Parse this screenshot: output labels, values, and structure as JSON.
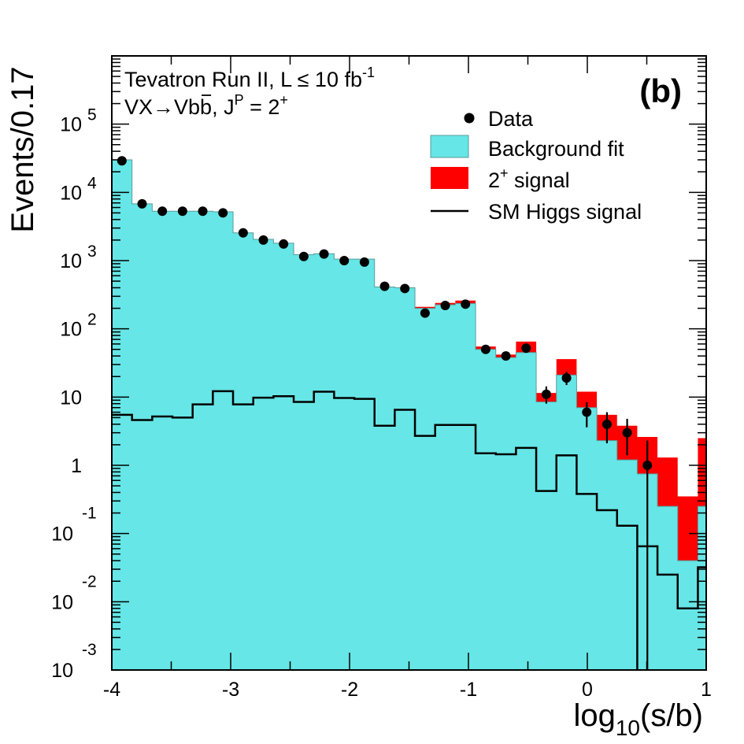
{
  "chart_data": {
    "type": "histogram",
    "xlabel": {
      "main": "log",
      "sub": "10",
      "rest": "(s/b)"
    },
    "ylabel": "Events/0.17",
    "xlim": [
      -4,
      1
    ],
    "ylim": [
      0.001,
      1000000
    ],
    "yscale": "log",
    "grid": false,
    "x_ticks": [
      "-4",
      "-3",
      "-2",
      "-1",
      "0",
      "1"
    ],
    "y_ticks": [
      {
        "value": 0.001,
        "base": "10",
        "exp": "-3"
      },
      {
        "value": 0.01,
        "base": "10",
        "exp": "-2"
      },
      {
        "value": 0.1,
        "base": "10",
        "exp": "-1"
      },
      {
        "value": 1,
        "base": "1",
        "exp": ""
      },
      {
        "value": 10,
        "base": "10",
        "exp": ""
      },
      {
        "value": 100,
        "base": "10",
        "exp": "2"
      },
      {
        "value": 1000,
        "base": "10",
        "exp": "3"
      },
      {
        "value": 10000,
        "base": "10",
        "exp": "4"
      },
      {
        "value": 100000,
        "base": "10",
        "exp": "5"
      }
    ],
    "annotations": {
      "line1_main": "Tevatron Run II, L ≤ 10 fb",
      "line1_sup": "-1",
      "line2_pre": "VX→Vb",
      "line2_bbar": "b",
      "line2_mid": ", J",
      "line2_sup": "P",
      "line2_post": " = 2",
      "line2_sup2": "+",
      "panel": "(b)"
    },
    "legend": {
      "position": "top-right",
      "entries": [
        {
          "type": "marker",
          "label": "Data"
        },
        {
          "type": "fill",
          "color": "#66e6e6",
          "label": "Background fit"
        },
        {
          "type": "fill",
          "color": "#ff0000",
          "label_pre": "2",
          "label_sup": "+",
          "label_post": " signal"
        },
        {
          "type": "line",
          "color": "#000000",
          "label": "SM Higgs signal"
        }
      ]
    },
    "bin_edges": [
      -4.0,
      -3.83,
      -3.66,
      -3.49,
      -3.32,
      -3.15,
      -2.98,
      -2.81,
      -2.64,
      -2.47,
      -2.3,
      -2.13,
      -1.96,
      -1.79,
      -1.62,
      -1.45,
      -1.28,
      -1.11,
      -0.94,
      -0.77,
      -0.6,
      -0.43,
      -0.26,
      -0.09,
      0.08,
      0.25,
      0.42,
      0.59,
      0.76,
      0.93,
      1.0
    ],
    "series": [
      {
        "name": "Background fit",
        "color": "#66e6e6",
        "values": [
          30000,
          6800,
          5300,
          5300,
          5300,
          5200,
          2550,
          2050,
          1800,
          1220,
          1260,
          1050,
          1050,
          410,
          400,
          200,
          225,
          235,
          50,
          38,
          45,
          8.5,
          21,
          7,
          2.3,
          1.2,
          0.75,
          0.25,
          0.04,
          0.25,
          0.25
        ]
      },
      {
        "name": "2+ signal",
        "color": "#ff0000",
        "values": [
          30000,
          6800,
          5300,
          5300,
          5300,
          5200,
          2550,
          2050,
          1800,
          1220,
          1260,
          1050,
          1050,
          410,
          400,
          210,
          240,
          260,
          55,
          42,
          65,
          11.5,
          36,
          12,
          5.5,
          3.8,
          2.6,
          1.3,
          0.35,
          2.5,
          2.5
        ]
      },
      {
        "name": "SM Higgs signal",
        "color": "#000000",
        "values": [
          5.5,
          4.6,
          5.2,
          5,
          7.8,
          12.2,
          7.8,
          9.8,
          10.3,
          8.5,
          12,
          9.7,
          9.4,
          3.8,
          6.5,
          2.7,
          3.9,
          3.9,
          1.5,
          1.45,
          1.8,
          0.42,
          1.4,
          0.38,
          0.22,
          0.13,
          0.065,
          0.025,
          0.008,
          0.032,
          0.032
        ]
      },
      {
        "name": "Data",
        "x": [
          -3.915,
          -3.745,
          -3.575,
          -3.405,
          -3.235,
          -3.065,
          -2.895,
          -2.725,
          -2.555,
          -2.385,
          -2.215,
          -2.045,
          -1.875,
          -1.705,
          -1.535,
          -1.365,
          -1.195,
          -1.025,
          -0.855,
          -0.685,
          -0.515,
          -0.345,
          -0.175,
          -0.005,
          0.165,
          0.335,
          0.505
        ],
        "y": [
          29000,
          6800,
          5300,
          5300,
          5300,
          5000,
          2550,
          2000,
          1750,
          1150,
          1250,
          1000,
          950,
          420,
          390,
          170,
          220,
          230,
          50,
          40,
          52,
          11,
          19,
          6,
          4,
          3,
          1
        ],
        "err_low": [
          0,
          0,
          0,
          0,
          0,
          0,
          0,
          0,
          0,
          0,
          0,
          0,
          0,
          0,
          0,
          0,
          0,
          0,
          0,
          0,
          0,
          3,
          4,
          2.4,
          1.9,
          1.6,
          0.999
        ],
        "err_high": [
          0,
          0,
          0,
          0,
          0,
          0,
          0,
          0,
          0,
          0,
          0,
          0,
          0,
          0,
          0,
          0,
          0,
          0,
          0,
          0,
          0,
          3.3,
          4.4,
          2.4,
          2,
          1.8,
          1.3
        ]
      }
    ]
  }
}
